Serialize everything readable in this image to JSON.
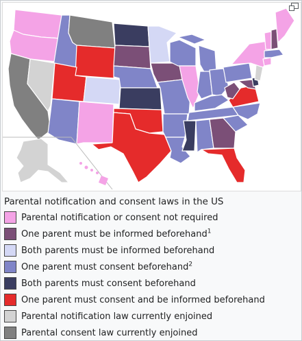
{
  "caption": {
    "title": "Parental notification and consent laws in the US",
    "enlarge_icon": "magnify-clip-icon"
  },
  "colors": {
    "notification_or_consent_not_required": "#f4a3e6",
    "one_parent_informed": "#7b4f77",
    "both_parents_informed": "#d4d8f5",
    "one_parent_consent": "#8085c8",
    "both_parents_consent": "#3a3d60",
    "one_parent_consent_and_informed": "#e52b2b",
    "notification_enjoined": "#d3d3d3",
    "consent_enjoined": "#808080"
  },
  "legend": [
    {
      "label": "Parental notification or consent not required",
      "sup": "",
      "color": "#f4a3e6"
    },
    {
      "label": "One parent must be informed beforehand",
      "sup": "1",
      "color": "#7b4f77"
    },
    {
      "label": "Both parents must be informed beforehand",
      "sup": "",
      "color": "#d4d8f5"
    },
    {
      "label": "One parent must consent beforehand",
      "sup": "2",
      "color": "#8085c8"
    },
    {
      "label": "Both parents must consent beforehand",
      "sup": "",
      "color": "#3a3d60"
    },
    {
      "label": "One parent must consent and be informed beforehand",
      "sup": "",
      "color": "#e52b2b"
    },
    {
      "label": "Parental notification law currently enjoined",
      "sup": "",
      "color": "#d3d3d3"
    },
    {
      "label": "Parental consent law currently enjoined",
      "sup": "",
      "color": "#808080"
    }
  ]
}
